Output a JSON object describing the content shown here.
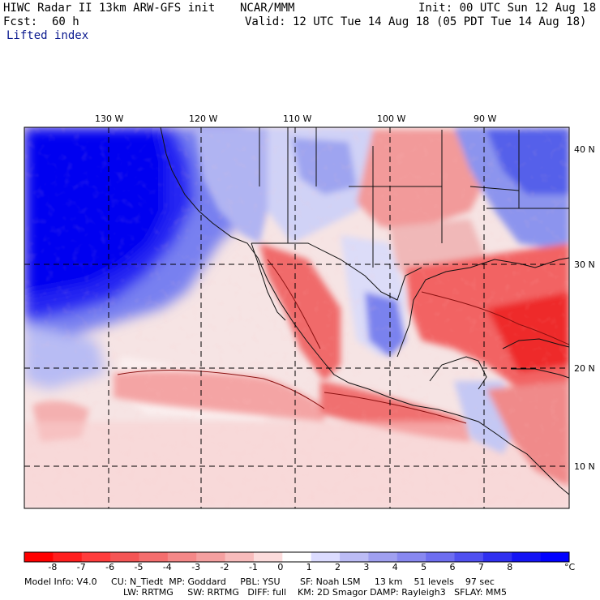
{
  "header": {
    "title_left": "HIWC Radar II 13km ARW-GFS init",
    "org": "NCAR/MMM",
    "init": "Init: 00 UTC Sun 12 Aug 18",
    "fcst_label": "Fcst:",
    "fcst_value": "60 h",
    "valid": "Valid: 12 UTC Tue 14 Aug 18 (05 PDT Tue 14 Aug 18)",
    "field": "Lifted index"
  },
  "map_labels": {
    "lon": [
      "130 W",
      "120 W",
      "110 W",
      "100 W",
      "90 W"
    ],
    "lat": [
      "40 N",
      "30 N",
      "20 N",
      "10 N"
    ]
  },
  "colorbar": {
    "ticks": [
      "-8",
      "-7",
      "-6",
      "-5",
      "-4",
      "-3",
      "-2",
      "-1",
      "0",
      "1",
      "2",
      "3",
      "4",
      "5",
      "6",
      "7",
      "8"
    ],
    "unit": "°C",
    "colors": [
      "#ff0000",
      "#ff1e1e",
      "#ff3c3c",
      "#f55555",
      "#f56e6e",
      "#f58888",
      "#f5a0a0",
      "#f8bcbc",
      "#fcdcdc",
      "#ffffff",
      "#dcdcff",
      "#bcbcf5",
      "#a0a0f0",
      "#8888f0",
      "#6e6ef0",
      "#5050f0",
      "#3030f0",
      "#1414f5",
      "#0000ff"
    ]
  },
  "footer": {
    "line1": "Model Info: V4.0     CU: N_Tiedt  MP: Goddard     PBL: YSU       SF: Noah LSM     13 km    51 levels    97 sec",
    "line2": "LW: RRTMG     SW: RRTMG   DIFF: full    KM: 2D Smagor DAMP: Rayleigh3   SFLAY: MM5"
  },
  "colors": {
    "text": "#000000",
    "subtitle": "#0b1a8f",
    "ocean_stable": "#0a10f0",
    "unstable": "#ff2020"
  }
}
